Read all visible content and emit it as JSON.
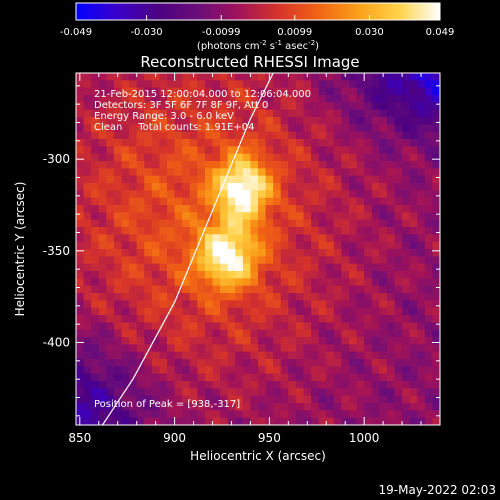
{
  "chart_data": {
    "type": "heatmap",
    "title": "Reconstructed RHESSI Image",
    "xlabel": "Heliocentric X (arcsec)",
    "ylabel": "Heliocentric Y (arcsec)",
    "xlim": [
      848,
      1040
    ],
    "ylim": [
      -445,
      -253
    ],
    "x_ticks": [
      850,
      900,
      950,
      1000
    ],
    "y_ticks": [
      -300,
      -350,
      -400
    ],
    "colorbar": {
      "label": "(photons cm",
      "label_sup1": "-2",
      "label_mid1": " s",
      "label_sup2": "-1",
      "label_mid2": " asec",
      "label_sup3": "-2",
      "label_end": ")",
      "range": [
        -0.049,
        0.049
      ],
      "tick_labels": [
        "-0.049",
        "-0.030",
        "-0.0099",
        "0.0099",
        "0.030",
        "0.049"
      ],
      "tick_values": [
        -0.049,
        -0.03,
        -0.0099,
        0.0099,
        0.03,
        0.049
      ],
      "colors": [
        "#0000ff",
        "#3a00cc",
        "#4b0082",
        "#6a0d7a",
        "#a0125a",
        "#d6332a",
        "#f26413",
        "#fba11a",
        "#ffd44a",
        "#ffffff"
      ]
    },
    "peak_position": [
      938,
      -317
    ],
    "sources": [
      {
        "x": 936,
        "y": -316,
        "sx": 10,
        "sy": 12,
        "amp": 0.046
      },
      {
        "x": 928,
        "y": -353,
        "sx": 11,
        "sy": 12,
        "amp": 0.043
      },
      {
        "x": 912,
        "y": -330,
        "sx": 55,
        "sy": 65,
        "amp": 0.022
      }
    ],
    "limb_line": [
      [
        862,
        -445
      ],
      [
        878,
        -420
      ],
      [
        900,
        -378
      ],
      [
        920,
        -328
      ],
      [
        940,
        -278
      ],
      [
        952,
        -253
      ]
    ],
    "annotations": {
      "line1": "21-Feb-2015 12:00:04.000 to 12:06:04.000",
      "line2": "Detectors: 3F 5F 6F 7F 8F 9F, Att 0",
      "line3": "Energy Range: 3.0 - 6.0 keV",
      "line4": "Clean     Total counts: 1.91E+04",
      "peak": "Position of Peak = [938,-317]"
    }
  },
  "footer": {
    "date_stamp": "19-May-2022 02:03"
  }
}
